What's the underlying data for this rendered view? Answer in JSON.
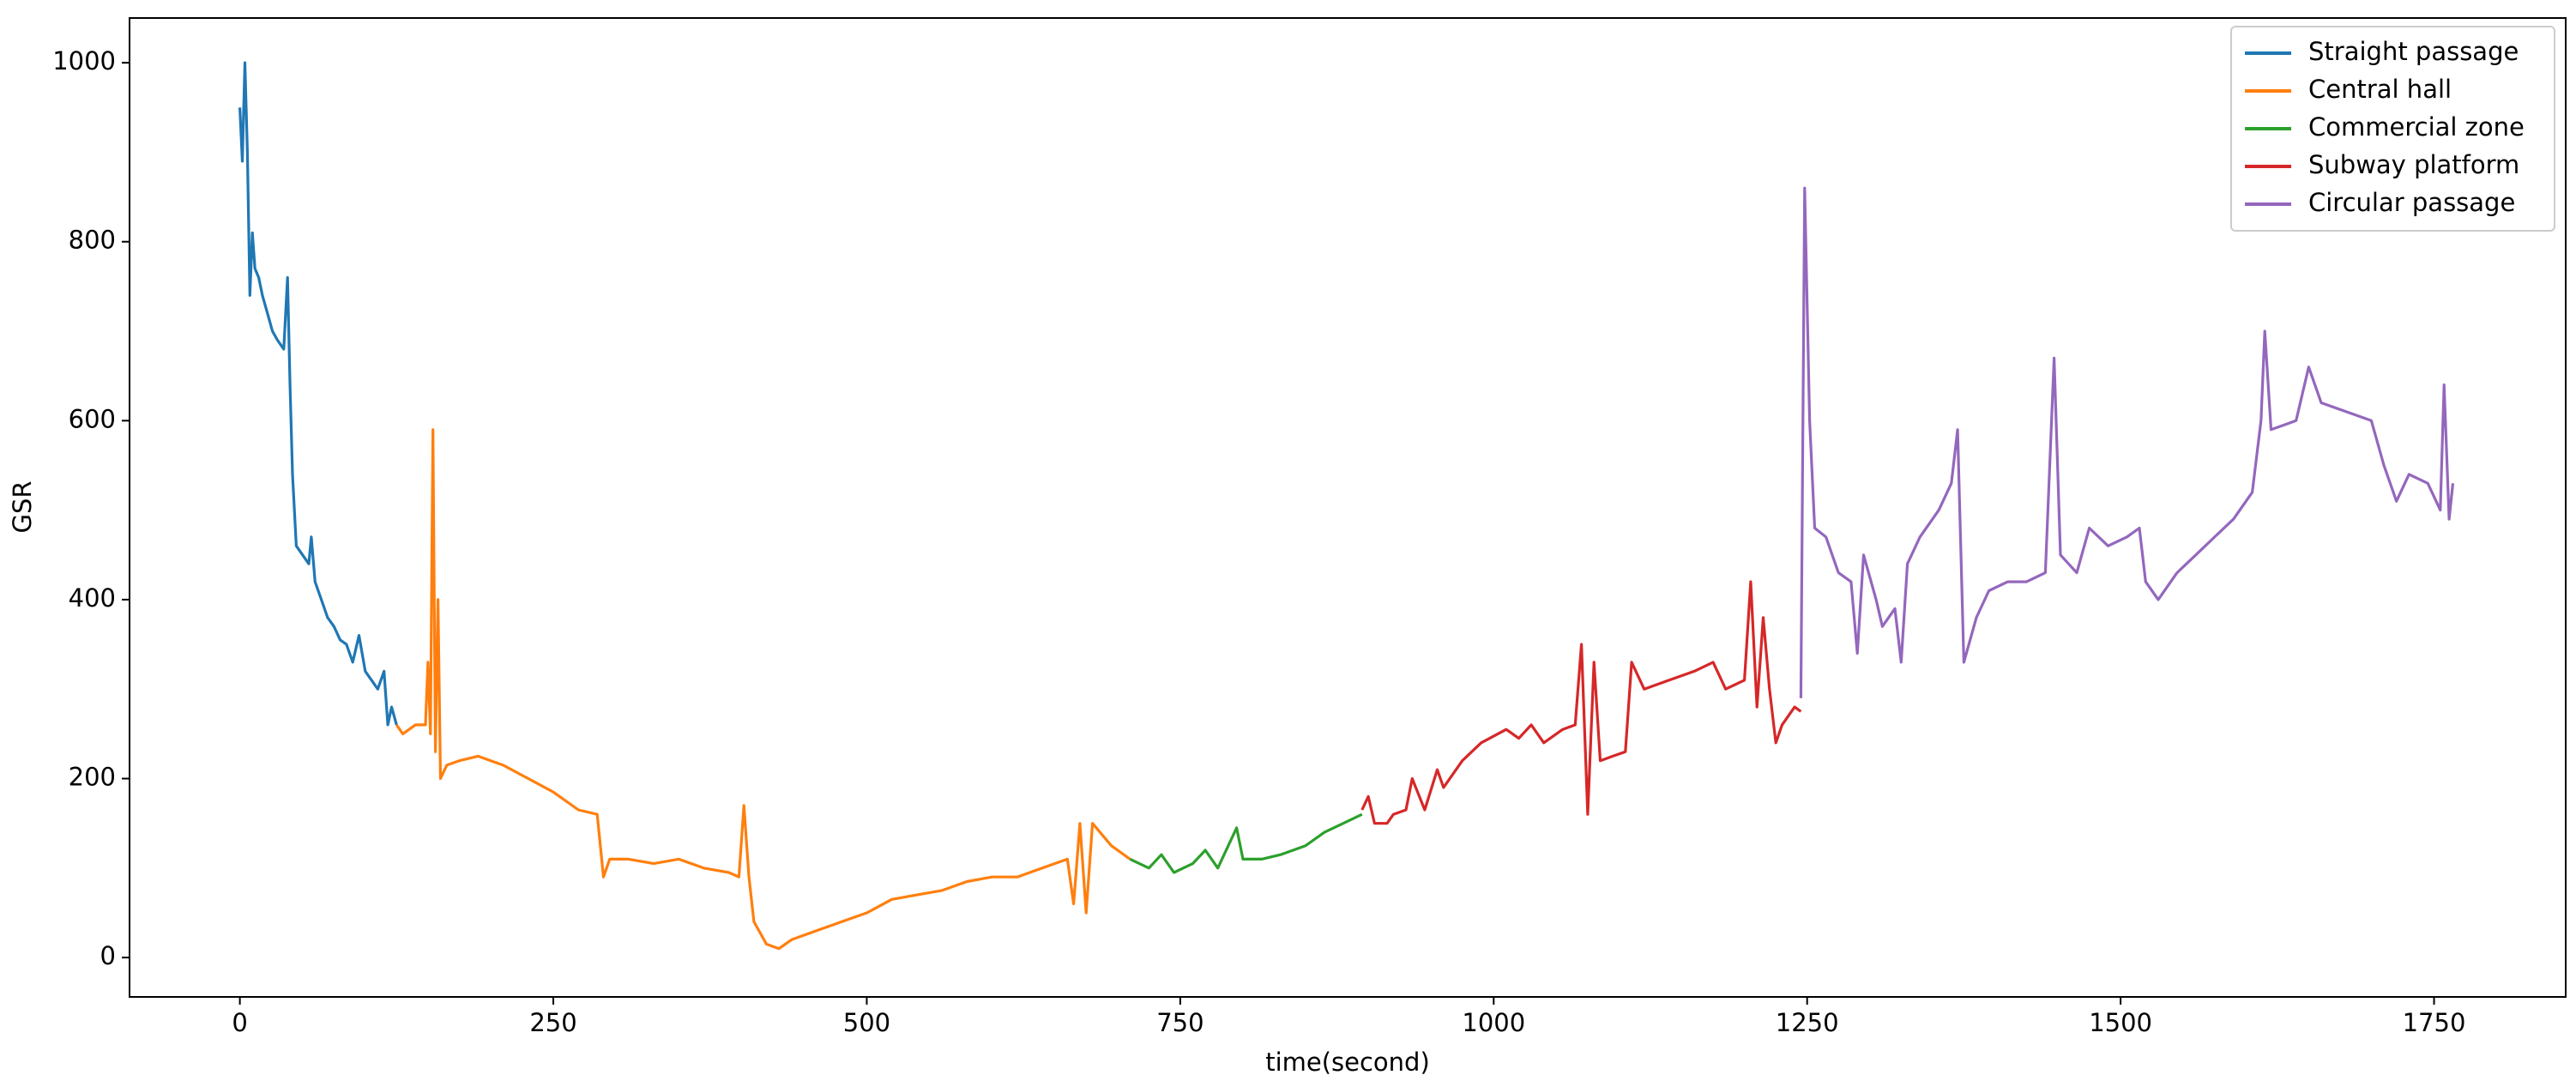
{
  "chart_data": {
    "type": "line",
    "xlabel": "time(second)",
    "ylabel": "GSR",
    "xlim": [
      -88,
      1855
    ],
    "ylim": [
      -44,
      1050
    ],
    "xticks": [
      0,
      250,
      500,
      750,
      1000,
      1250,
      1500,
      1750
    ],
    "yticks": [
      0,
      200,
      400,
      600,
      800,
      1000
    ],
    "legend": "upper right",
    "series": [
      {
        "name": "Straight passage",
        "color": "#1f77b4",
        "x": [
          0,
          2,
          4,
          6,
          8,
          10,
          12,
          15,
          18,
          22,
          26,
          30,
          35,
          38,
          40,
          42,
          45,
          50,
          55,
          57,
          60,
          65,
          70,
          75,
          80,
          85,
          90,
          95,
          100,
          105,
          110,
          115,
          118,
          121,
          125
        ],
        "values": [
          950,
          890,
          1000,
          900,
          740,
          810,
          770,
          760,
          740,
          720,
          700,
          690,
          680,
          760,
          640,
          540,
          460,
          450,
          440,
          470,
          420,
          400,
          380,
          370,
          355,
          350,
          330,
          360,
          320,
          310,
          300,
          320,
          260,
          280,
          260
        ]
      },
      {
        "name": "Central hall",
        "color": "#ff7f0e",
        "x": [
          125,
          130,
          140,
          148,
          150,
          152,
          154,
          156,
          158,
          160,
          165,
          175,
          190,
          210,
          230,
          250,
          270,
          285,
          290,
          295,
          310,
          330,
          350,
          370,
          390,
          398,
          402,
          406,
          410,
          420,
          430,
          440,
          460,
          480,
          500,
          520,
          540,
          560,
          580,
          600,
          620,
          640,
          660,
          665,
          670,
          675,
          680,
          695,
          710
        ],
        "values": [
          260,
          250,
          260,
          260,
          330,
          250,
          590,
          230,
          400,
          200,
          215,
          220,
          225,
          215,
          200,
          185,
          165,
          160,
          90,
          110,
          110,
          105,
          110,
          100,
          95,
          90,
          170,
          90,
          40,
          15,
          10,
          20,
          30,
          40,
          50,
          65,
          70,
          75,
          85,
          90,
          90,
          100,
          110,
          60,
          150,
          50,
          150,
          125,
          110
        ]
      },
      {
        "name": "Commercial zone",
        "color": "#2ca02c",
        "x": [
          710,
          725,
          735,
          745,
          760,
          770,
          780,
          795,
          800,
          815,
          830,
          850,
          865,
          880,
          895
        ],
        "values": [
          110,
          100,
          115,
          95,
          105,
          120,
          100,
          145,
          110,
          110,
          115,
          125,
          140,
          150,
          160
        ]
      },
      {
        "name": "Subway platform",
        "color": "#d62728",
        "x": [
          895,
          900,
          905,
          915,
          920,
          930,
          935,
          945,
          955,
          960,
          975,
          990,
          1010,
          1020,
          1030,
          1040,
          1055,
          1065,
          1070,
          1075,
          1080,
          1085,
          1095,
          1105,
          1110,
          1120,
          1140,
          1160,
          1175,
          1185,
          1200,
          1205,
          1210,
          1215,
          1220,
          1225,
          1230,
          1240,
          1245
        ],
        "values": [
          165,
          180,
          150,
          150,
          160,
          165,
          200,
          165,
          210,
          190,
          220,
          240,
          255,
          245,
          260,
          240,
          255,
          260,
          350,
          160,
          330,
          220,
          225,
          230,
          330,
          300,
          310,
          320,
          330,
          300,
          310,
          420,
          280,
          380,
          300,
          240,
          260,
          280,
          275
        ]
      },
      {
        "name": "Circular passage",
        "color": "#9467bd",
        "x": [
          1245,
          1248,
          1252,
          1256,
          1265,
          1275,
          1285,
          1290,
          1295,
          1305,
          1310,
          1320,
          1325,
          1330,
          1340,
          1355,
          1365,
          1370,
          1375,
          1385,
          1395,
          1410,
          1425,
          1440,
          1447,
          1452,
          1465,
          1475,
          1490,
          1505,
          1515,
          1520,
          1530,
          1545,
          1560,
          1575,
          1590,
          1605,
          1612,
          1615,
          1620,
          1640,
          1650,
          1660,
          1680,
          1700,
          1710,
          1720,
          1730,
          1745,
          1755,
          1758,
          1762,
          1765
        ],
        "values": [
          290,
          860,
          600,
          480,
          470,
          430,
          420,
          340,
          450,
          400,
          370,
          390,
          330,
          440,
          470,
          500,
          530,
          590,
          330,
          380,
          410,
          420,
          420,
          430,
          670,
          450,
          430,
          480,
          460,
          470,
          480,
          420,
          400,
          430,
          450,
          470,
          490,
          520,
          600,
          700,
          590,
          600,
          660,
          620,
          610,
          600,
          550,
          510,
          540,
          530,
          500,
          640,
          490,
          530
        ]
      }
    ]
  }
}
